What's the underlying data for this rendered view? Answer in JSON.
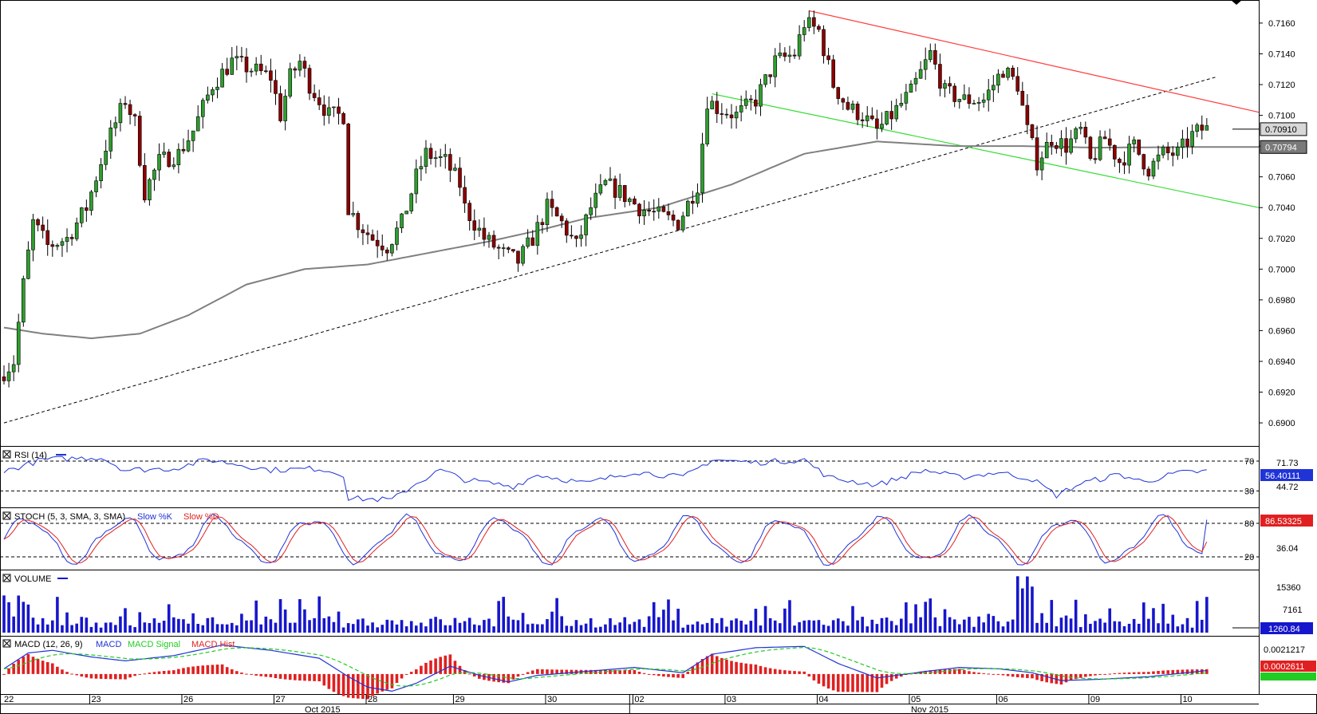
{
  "colors": {
    "bull": "#2e9e2e",
    "bear": "#8b0000",
    "sma": "#808080",
    "upper_channel": "#ff3b3b",
    "lower_channel": "#33dd33",
    "trendline": "#000000",
    "rsi": "#1f33d6",
    "stoch_k": "#1f33d6",
    "stoch_d": "#e02020",
    "volume": "#1616cc",
    "macd": "#1f33d6",
    "macd_signal": "#22cc22",
    "macd_hist": "#e02020",
    "grid_dash": "#000000"
  },
  "chart_data": {
    "type": "candlestick",
    "price_axis": {
      "ylim": [
        0.6885,
        0.7175
      ],
      "ticks": [
        "0.7160",
        "0.7140",
        "0.7120",
        "0.7100",
        "0.7080",
        "0.7060",
        "0.7040",
        "0.7020",
        "0.7000",
        "0.6980",
        "0.6960",
        "0.6940",
        "0.6920",
        "0.6900"
      ],
      "current_price_label": "0.70910",
      "sma_label": "0.70794"
    },
    "x_axis": {
      "day_labels": [
        "22",
        "23",
        "26",
        "27",
        "28",
        "29",
        "30",
        "02",
        "03",
        "04",
        "05",
        "06",
        "09",
        "10"
      ],
      "month_labels": [
        "Oct 2015",
        "Nov 2015"
      ]
    },
    "price_anchors": [
      [
        0,
        0.693
      ],
      [
        3,
        0.694
      ],
      [
        5,
        0.699
      ],
      [
        7,
        0.703
      ],
      [
        10,
        0.7015
      ],
      [
        14,
        0.702
      ],
      [
        18,
        0.704
      ],
      [
        22,
        0.708
      ],
      [
        26,
        0.711
      ],
      [
        28,
        0.7095
      ],
      [
        30,
        0.705
      ],
      [
        33,
        0.707
      ],
      [
        37,
        0.7075
      ],
      [
        40,
        0.709
      ],
      [
        44,
        0.712
      ],
      [
        48,
        0.7135
      ],
      [
        52,
        0.713
      ],
      [
        56,
        0.7125
      ],
      [
        58,
        0.71
      ],
      [
        60,
        0.7125
      ],
      [
        62,
        0.7135
      ],
      [
        64,
        0.712
      ],
      [
        68,
        0.71
      ],
      [
        71,
        0.71
      ],
      [
        72,
        0.704
      ],
      [
        74,
        0.703
      ],
      [
        77,
        0.702
      ],
      [
        80,
        0.7015
      ],
      [
        83,
        0.703
      ],
      [
        86,
        0.706
      ],
      [
        88,
        0.7075
      ],
      [
        92,
        0.707
      ],
      [
        95,
        0.7055
      ],
      [
        96,
        0.704
      ],
      [
        100,
        0.702
      ],
      [
        104,
        0.701
      ],
      [
        107,
        0.7005
      ],
      [
        110,
        0.702
      ],
      [
        113,
        0.704
      ],
      [
        116,
        0.703
      ],
      [
        119,
        0.7015
      ],
      [
        122,
        0.704
      ],
      [
        125,
        0.7055
      ],
      [
        128,
        0.705
      ],
      [
        132,
        0.704
      ],
      [
        136,
        0.7035
      ],
      [
        140,
        0.703
      ],
      [
        144,
        0.7055
      ],
      [
        146,
        0.711
      ],
      [
        148,
        0.7105
      ],
      [
        152,
        0.71
      ],
      [
        156,
        0.711
      ],
      [
        160,
        0.7135
      ],
      [
        164,
        0.714
      ],
      [
        166,
        0.716
      ],
      [
        169,
        0.7155
      ],
      [
        172,
        0.712
      ],
      [
        175,
        0.7105
      ],
      [
        178,
        0.71
      ],
      [
        181,
        0.709
      ],
      [
        184,
        0.71
      ],
      [
        188,
        0.7115
      ],
      [
        192,
        0.714
      ],
      [
        195,
        0.7115
      ],
      [
        199,
        0.711
      ],
      [
        203,
        0.711
      ],
      [
        207,
        0.713
      ],
      [
        210,
        0.712
      ],
      [
        212,
        0.709
      ],
      [
        214,
        0.707
      ],
      [
        217,
        0.7085
      ],
      [
        220,
        0.708
      ],
      [
        223,
        0.709
      ],
      [
        225,
        0.707
      ],
      [
        228,
        0.7085
      ],
      [
        231,
        0.707
      ],
      [
        234,
        0.708
      ],
      [
        237,
        0.7065
      ],
      [
        240,
        0.7075
      ],
      [
        243,
        0.7075
      ],
      [
        246,
        0.7087
      ],
      [
        248,
        0.7091
      ]
    ],
    "sma_anchors": [
      [
        0,
        0.6962
      ],
      [
        8,
        0.6958
      ],
      [
        18,
        0.6955
      ],
      [
        28,
        0.6958
      ],
      [
        38,
        0.697
      ],
      [
        50,
        0.699
      ],
      [
        62,
        0.7
      ],
      [
        75,
        0.7003
      ],
      [
        90,
        0.7012
      ],
      [
        100,
        0.7018
      ],
      [
        110,
        0.7025
      ],
      [
        120,
        0.7033
      ],
      [
        135,
        0.704
      ],
      [
        150,
        0.7055
      ],
      [
        165,
        0.7075
      ],
      [
        180,
        0.7083
      ],
      [
        196,
        0.708
      ],
      [
        210,
        0.708
      ],
      [
        225,
        0.7079
      ],
      [
        248,
        0.70794
      ]
    ],
    "trendline": {
      "from": [
        0,
        0.69
      ],
      "to": [
        250,
        0.7125
      ]
    },
    "upper_channel": {
      "from": [
        166,
        0.7168
      ],
      "to": [
        250,
        0.7102
      ]
    },
    "lower_channel": {
      "from": [
        146,
        0.7114
      ],
      "to": [
        250,
        0.704
      ]
    },
    "rsi": {
      "label": "RSI (14)",
      "levels": [
        "70",
        "30"
      ],
      "ylim": [
        10,
        85
      ],
      "axis_labels": [
        "71.73",
        "44.72"
      ],
      "current": "56.40111",
      "anchors": [
        [
          0,
          56
        ],
        [
          8,
          72
        ],
        [
          20,
          75
        ],
        [
          25,
          58
        ],
        [
          35,
          60
        ],
        [
          42,
          72
        ],
        [
          48,
          66
        ],
        [
          55,
          58
        ],
        [
          65,
          60
        ],
        [
          70,
          52
        ],
        [
          71,
          20
        ],
        [
          80,
          18
        ],
        [
          85,
          40
        ],
        [
          90,
          58
        ],
        [
          95,
          45
        ],
        [
          105,
          36
        ],
        [
          110,
          52
        ],
        [
          120,
          40
        ],
        [
          130,
          56
        ],
        [
          140,
          48
        ],
        [
          146,
          72
        ],
        [
          155,
          68
        ],
        [
          165,
          72
        ],
        [
          170,
          48
        ],
        [
          180,
          38
        ],
        [
          190,
          58
        ],
        [
          197,
          48
        ],
        [
          205,
          55
        ],
        [
          212,
          46
        ],
        [
          217,
          24
        ],
        [
          222,
          40
        ],
        [
          230,
          52
        ],
        [
          235,
          42
        ],
        [
          242,
          54
        ],
        [
          248,
          56.4
        ]
      ]
    },
    "stoch": {
      "label": "STOCH (5, 3, SMA, 3, SMA)",
      "series_labels": [
        "Slow %K",
        "Slow %D"
      ],
      "levels": [
        "80",
        "20"
      ],
      "ylim": [
        0,
        100
      ],
      "axis_labels": [
        "36.04"
      ],
      "current": "86.53325"
    },
    "volume": {
      "label": "VOLUME",
      "ylim": [
        0,
        18000
      ],
      "axis_labels": [
        "15360",
        "7161"
      ],
      "current": "1260.84"
    },
    "macd": {
      "label": "MACD (12, 26, 9)",
      "series_labels": [
        "MACD",
        "MACD Signal",
        "MACD Hist"
      ],
      "ylim": [
        -0.0014,
        0.0026
      ],
      "axis_labels": [
        "0.0021217"
      ],
      "current": "0.0002611",
      "anchors": [
        [
          0,
          0.0004
        ],
        [
          5,
          0.0016
        ],
        [
          10,
          0.0018
        ],
        [
          18,
          0.0013
        ],
        [
          25,
          0.001
        ],
        [
          35,
          0.0014
        ],
        [
          45,
          0.0022
        ],
        [
          55,
          0.0018
        ],
        [
          65,
          0.0012
        ],
        [
          71,
          -0.0002
        ],
        [
          75,
          -0.001
        ],
        [
          80,
          -0.0013
        ],
        [
          85,
          -0.0007
        ],
        [
          92,
          0.0006
        ],
        [
          98,
          -0.0001
        ],
        [
          104,
          -0.0006
        ],
        [
          110,
          -0.0001
        ],
        [
          120,
          0.0002
        ],
        [
          130,
          0.0005
        ],
        [
          140,
          0.0001
        ],
        [
          146,
          0.0015
        ],
        [
          155,
          0.002
        ],
        [
          165,
          0.0021
        ],
        [
          172,
          0.0008
        ],
        [
          180,
          -0.0003
        ],
        [
          190,
          0.0002
        ],
        [
          197,
          0.0005
        ],
        [
          205,
          0.0004
        ],
        [
          212,
          0.0001
        ],
        [
          218,
          -0.0005
        ],
        [
          226,
          -0.0004
        ],
        [
          236,
          -0.0002
        ],
        [
          248,
          0.0002611
        ]
      ]
    }
  }
}
